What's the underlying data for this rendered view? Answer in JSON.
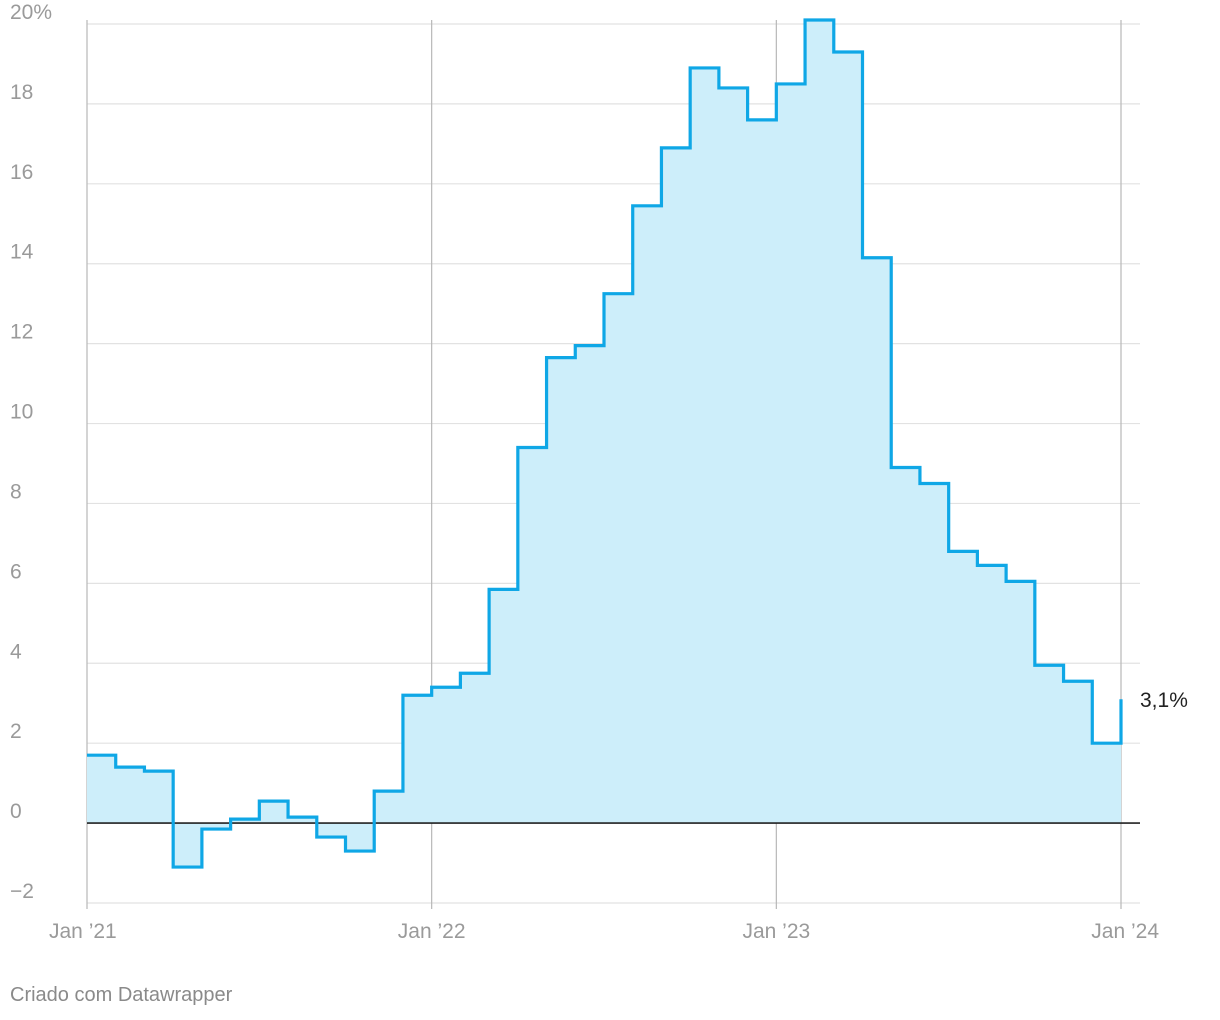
{
  "chart_data": {
    "type": "line",
    "step": true,
    "area": true,
    "x": [
      "2021-01",
      "2021-02",
      "2021-03",
      "2021-04",
      "2021-05",
      "2021-06",
      "2021-07",
      "2021-08",
      "2021-09",
      "2021-10",
      "2021-11",
      "2021-12",
      "2022-01",
      "2022-02",
      "2022-03",
      "2022-04",
      "2022-05",
      "2022-06",
      "2022-07",
      "2022-08",
      "2022-09",
      "2022-10",
      "2022-11",
      "2022-12",
      "2023-01",
      "2023-02",
      "2023-03",
      "2023-04",
      "2023-05",
      "2023-06",
      "2023-07",
      "2023-08",
      "2023-09",
      "2023-10",
      "2023-11",
      "2023-12",
      "2024-01"
    ],
    "series": [
      {
        "values": [
          1.7,
          1.4,
          1.3,
          -1.1,
          -0.15,
          0.1,
          0.55,
          0.15,
          -0.35,
          -0.7,
          0.8,
          3.2,
          3.4,
          3.75,
          5.85,
          9.4,
          11.65,
          11.95,
          13.25,
          15.45,
          16.9,
          18.9,
          18.4,
          17.6,
          18.5,
          20.1,
          19.3,
          14.15,
          8.9,
          8.5,
          6.8,
          6.45,
          6.05,
          3.95,
          3.55,
          2.0,
          3.1
        ],
        "color": "#0fa7e6",
        "fill": "#cdeefa"
      }
    ],
    "end_label": "3,1%",
    "y_ticks": [
      {
        "value": 20,
        "label": "20%"
      },
      {
        "value": 18,
        "label": "18"
      },
      {
        "value": 16,
        "label": "16"
      },
      {
        "value": 14,
        "label": "14"
      },
      {
        "value": 12,
        "label": "12"
      },
      {
        "value": 10,
        "label": "10"
      },
      {
        "value": 8,
        "label": "8"
      },
      {
        "value": 6,
        "label": "6"
      },
      {
        "value": 4,
        "label": "4"
      },
      {
        "value": 2,
        "label": "2"
      },
      {
        "value": 0,
        "label": "0"
      },
      {
        "value": -2,
        "label": "−2"
      }
    ],
    "x_ticks": [
      {
        "value": "2021-01",
        "label": "Jan ’21"
      },
      {
        "value": "2022-01",
        "label": "Jan ’22"
      },
      {
        "value": "2023-01",
        "label": "Jan ’23"
      },
      {
        "value": "2024-01",
        "label": "Jan ’24"
      }
    ],
    "ylim": [
      -2,
      20
    ],
    "xlim": [
      "2021-01",
      "2024-01"
    ],
    "grid": true,
    "baseline_color": "#222222",
    "grid_color": "#e2e2e2",
    "vgrid_color": "#b8b8b8"
  },
  "credit": "Criado com Datawrapper"
}
